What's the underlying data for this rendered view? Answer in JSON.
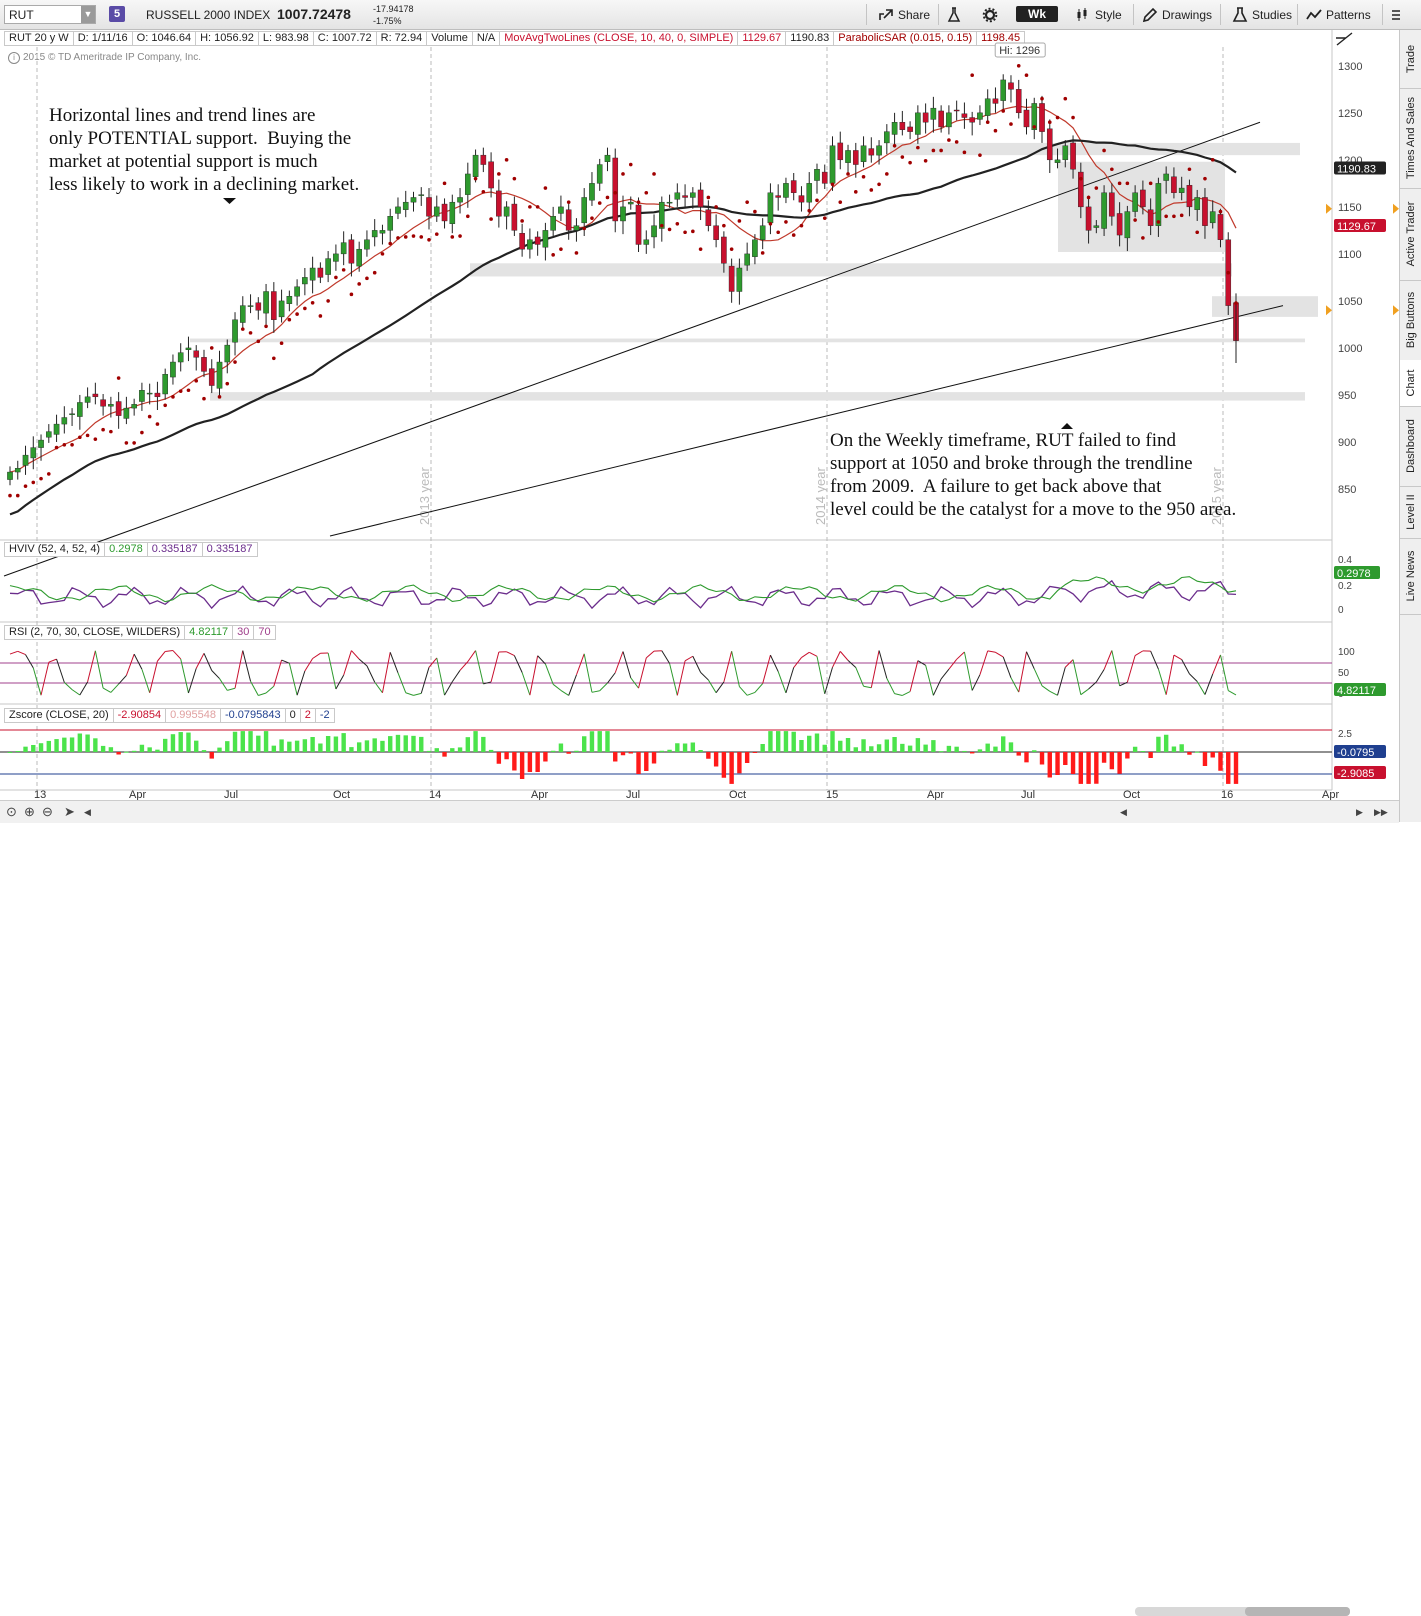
{
  "toolbar": {
    "symbol": "RUT",
    "link_badge": "5",
    "index_name": "RUSSELL 2000 INDEX",
    "last_price": "1007.72478",
    "net_change": "-17.94178",
    "pct_change": "-1.75%",
    "share_label": "Share",
    "timeframe": "Wk",
    "style_label": "Style",
    "drawings_label": "Drawings",
    "studies_label": "Studies",
    "patterns_label": "Patterns"
  },
  "info": {
    "period": "RUT 20 y W",
    "date": "D: 1/11/16",
    "open": "O: 1046.64",
    "high": "H: 1056.92",
    "low": "L: 983.98",
    "close": "C: 1007.72",
    "range": "R: 72.94",
    "volume_label": "Volume",
    "volume_value": "N/A",
    "ma_study": "MovAvgTwoLines (CLOSE, 10, 40, 0, SIMPLE)",
    "ma_fast": "1129.67",
    "ma_slow": "1190.83",
    "sar_study": "ParabolicSAR (0.015, 0.15)",
    "sar_value": "1198.45",
    "copyright": "2015 © TD Ameritrade IP Company, Inc."
  },
  "notes": {
    "left": "Horizontal lines and trend lines are\nonly POTENTIAL support.  Buying the\nmarket at potential support is much\nless likely to work in a declining market.",
    "right": "On the Weekly timeframe, RUT failed to find\nsupport at 1050 and broke through the trendline\nfrom 2009.  A failure to get back above that\nlevel could be the catalyst for a move to the 950 area."
  },
  "studies": {
    "hviv": {
      "name": "HVIV (52, 4, 52, 4)",
      "v1": "0.2978",
      "v2": "0.335187",
      "v3": "0.335187",
      "badge": "0.2978",
      "ticks": [
        "0.4",
        "0.2",
        "0"
      ]
    },
    "rsi": {
      "name": "RSI (2, 70, 30, CLOSE, WILDERS)",
      "value": "4.82117",
      "over_sold": "30",
      "over_bought": "70",
      "badge": "4.82117",
      "ticks": [
        "100",
        "50",
        "0"
      ]
    },
    "zscore": {
      "name": "Zscore (CLOSE, 20)",
      "v1": "-2.90854",
      "v2": "0.995548",
      "v3": "-0.0795843",
      "v4": "0",
      "v5": "2",
      "v6": "-2",
      "badge_top": "-0.0795",
      "badge_bottom": "-2.9085",
      "ticks": [
        "2.5"
      ]
    }
  },
  "sidebar": [
    "Trade",
    "Times And Sales",
    "Active Trader",
    "Big Buttons",
    "Chart",
    "Dashboard",
    "Level II",
    "Live News"
  ],
  "colors": {
    "up": "#2e9a2e",
    "down": "#c8102e",
    "ma_fast": "#c0392b",
    "ma_slow": "#222222",
    "sar": "#a00000",
    "zone": "#e3e3e3",
    "rsi_level": "#a0408c",
    "hv": "#2e9a2e",
    "iv": "#6b2d8c"
  },
  "chart_data": {
    "type": "candlestick",
    "timeframe": "weekly",
    "symbol": "RUT",
    "ylim": [
      800,
      1320
    ],
    "y_ticks": [
      850,
      900,
      950,
      1000,
      1050,
      1100,
      1150,
      1200,
      1250,
      1300
    ],
    "x_labels": [
      "13",
      "Apr",
      "Jul",
      "Oct",
      "14",
      "Apr",
      "Jul",
      "Oct",
      "15",
      "Apr",
      "Jul",
      "Oct",
      "16",
      "Apr"
    ],
    "year_markers": [
      "2013 year",
      "2014 year",
      "2015 year"
    ],
    "high_annotation": "Hi: 1296",
    "price_badges": {
      "ma_slow": "1190.83",
      "ma_fast": "1129.67"
    },
    "ohlc_path_closes": [
      868,
      872,
      886,
      894,
      902,
      911,
      919,
      926,
      930,
      942,
      948,
      948,
      938,
      940,
      928,
      936,
      940,
      955,
      952,
      948,
      972,
      985,
      995,
      1000,
      990,
      975,
      960,
      985,
      1003,
      1030,
      1045,
      1045,
      1040,
      1060,
      1030,
      1050,
      1055,
      1065,
      1075,
      1085,
      1075,
      1095,
      1100,
      1112,
      1090,
      1105,
      1115,
      1125,
      1125,
      1140,
      1150,
      1155,
      1160,
      1163,
      1140,
      1150,
      1135,
      1155,
      1160,
      1185,
      1205,
      1195,
      1170,
      1140,
      1150,
      1125,
      1105,
      1115,
      1110,
      1125,
      1140,
      1150,
      1125,
      1130,
      1160,
      1175,
      1195,
      1205,
      1135,
      1150,
      1155,
      1110,
      1115,
      1130,
      1155,
      1155,
      1165,
      1160,
      1165,
      1150,
      1130,
      1115,
      1090,
      1060,
      1085,
      1100,
      1115,
      1130,
      1165,
      1160,
      1175,
      1165,
      1155,
      1175,
      1190,
      1175,
      1215,
      1200,
      1210,
      1195,
      1215,
      1205,
      1215,
      1230,
      1240,
      1232,
      1230,
      1250,
      1240,
      1255,
      1235,
      1250,
      1252,
      1245,
      1240,
      1250,
      1265,
      1260,
      1285,
      1275,
      1250,
      1235,
      1260,
      1230,
      1200,
      1200,
      1215,
      1190,
      1150,
      1125,
      1130,
      1165,
      1140,
      1120,
      1145,
      1165,
      1150,
      1130,
      1175,
      1185,
      1165,
      1170,
      1150,
      1160,
      1130,
      1145,
      1115,
      1045,
      1007.72
    ],
    "ma10_last": 1129.67,
    "ma40_last": 1190.83,
    "sar_last": 1198.45,
    "support_zones": [
      {
        "top": 1218,
        "bottom": 1205
      },
      {
        "top": 1198,
        "bottom": 1102
      },
      {
        "top": 1090,
        "bottom": 1076
      },
      {
        "top": 1055,
        "bottom": 1033
      },
      {
        "top": 1010,
        "bottom": 1006
      },
      {
        "top": 953,
        "bottom": 944
      }
    ],
    "trendlines": [
      {
        "from": [
          0,
          800
        ],
        "to": [
          159,
          1240
        ]
      },
      {
        "from": [
          34,
          800
        ],
        "to": [
          169,
          1045
        ]
      }
    ],
    "last": {
      "date": "1/11/16",
      "open": 1046.64,
      "high": 1056.92,
      "low": 983.98,
      "close": 1007.72
    }
  }
}
